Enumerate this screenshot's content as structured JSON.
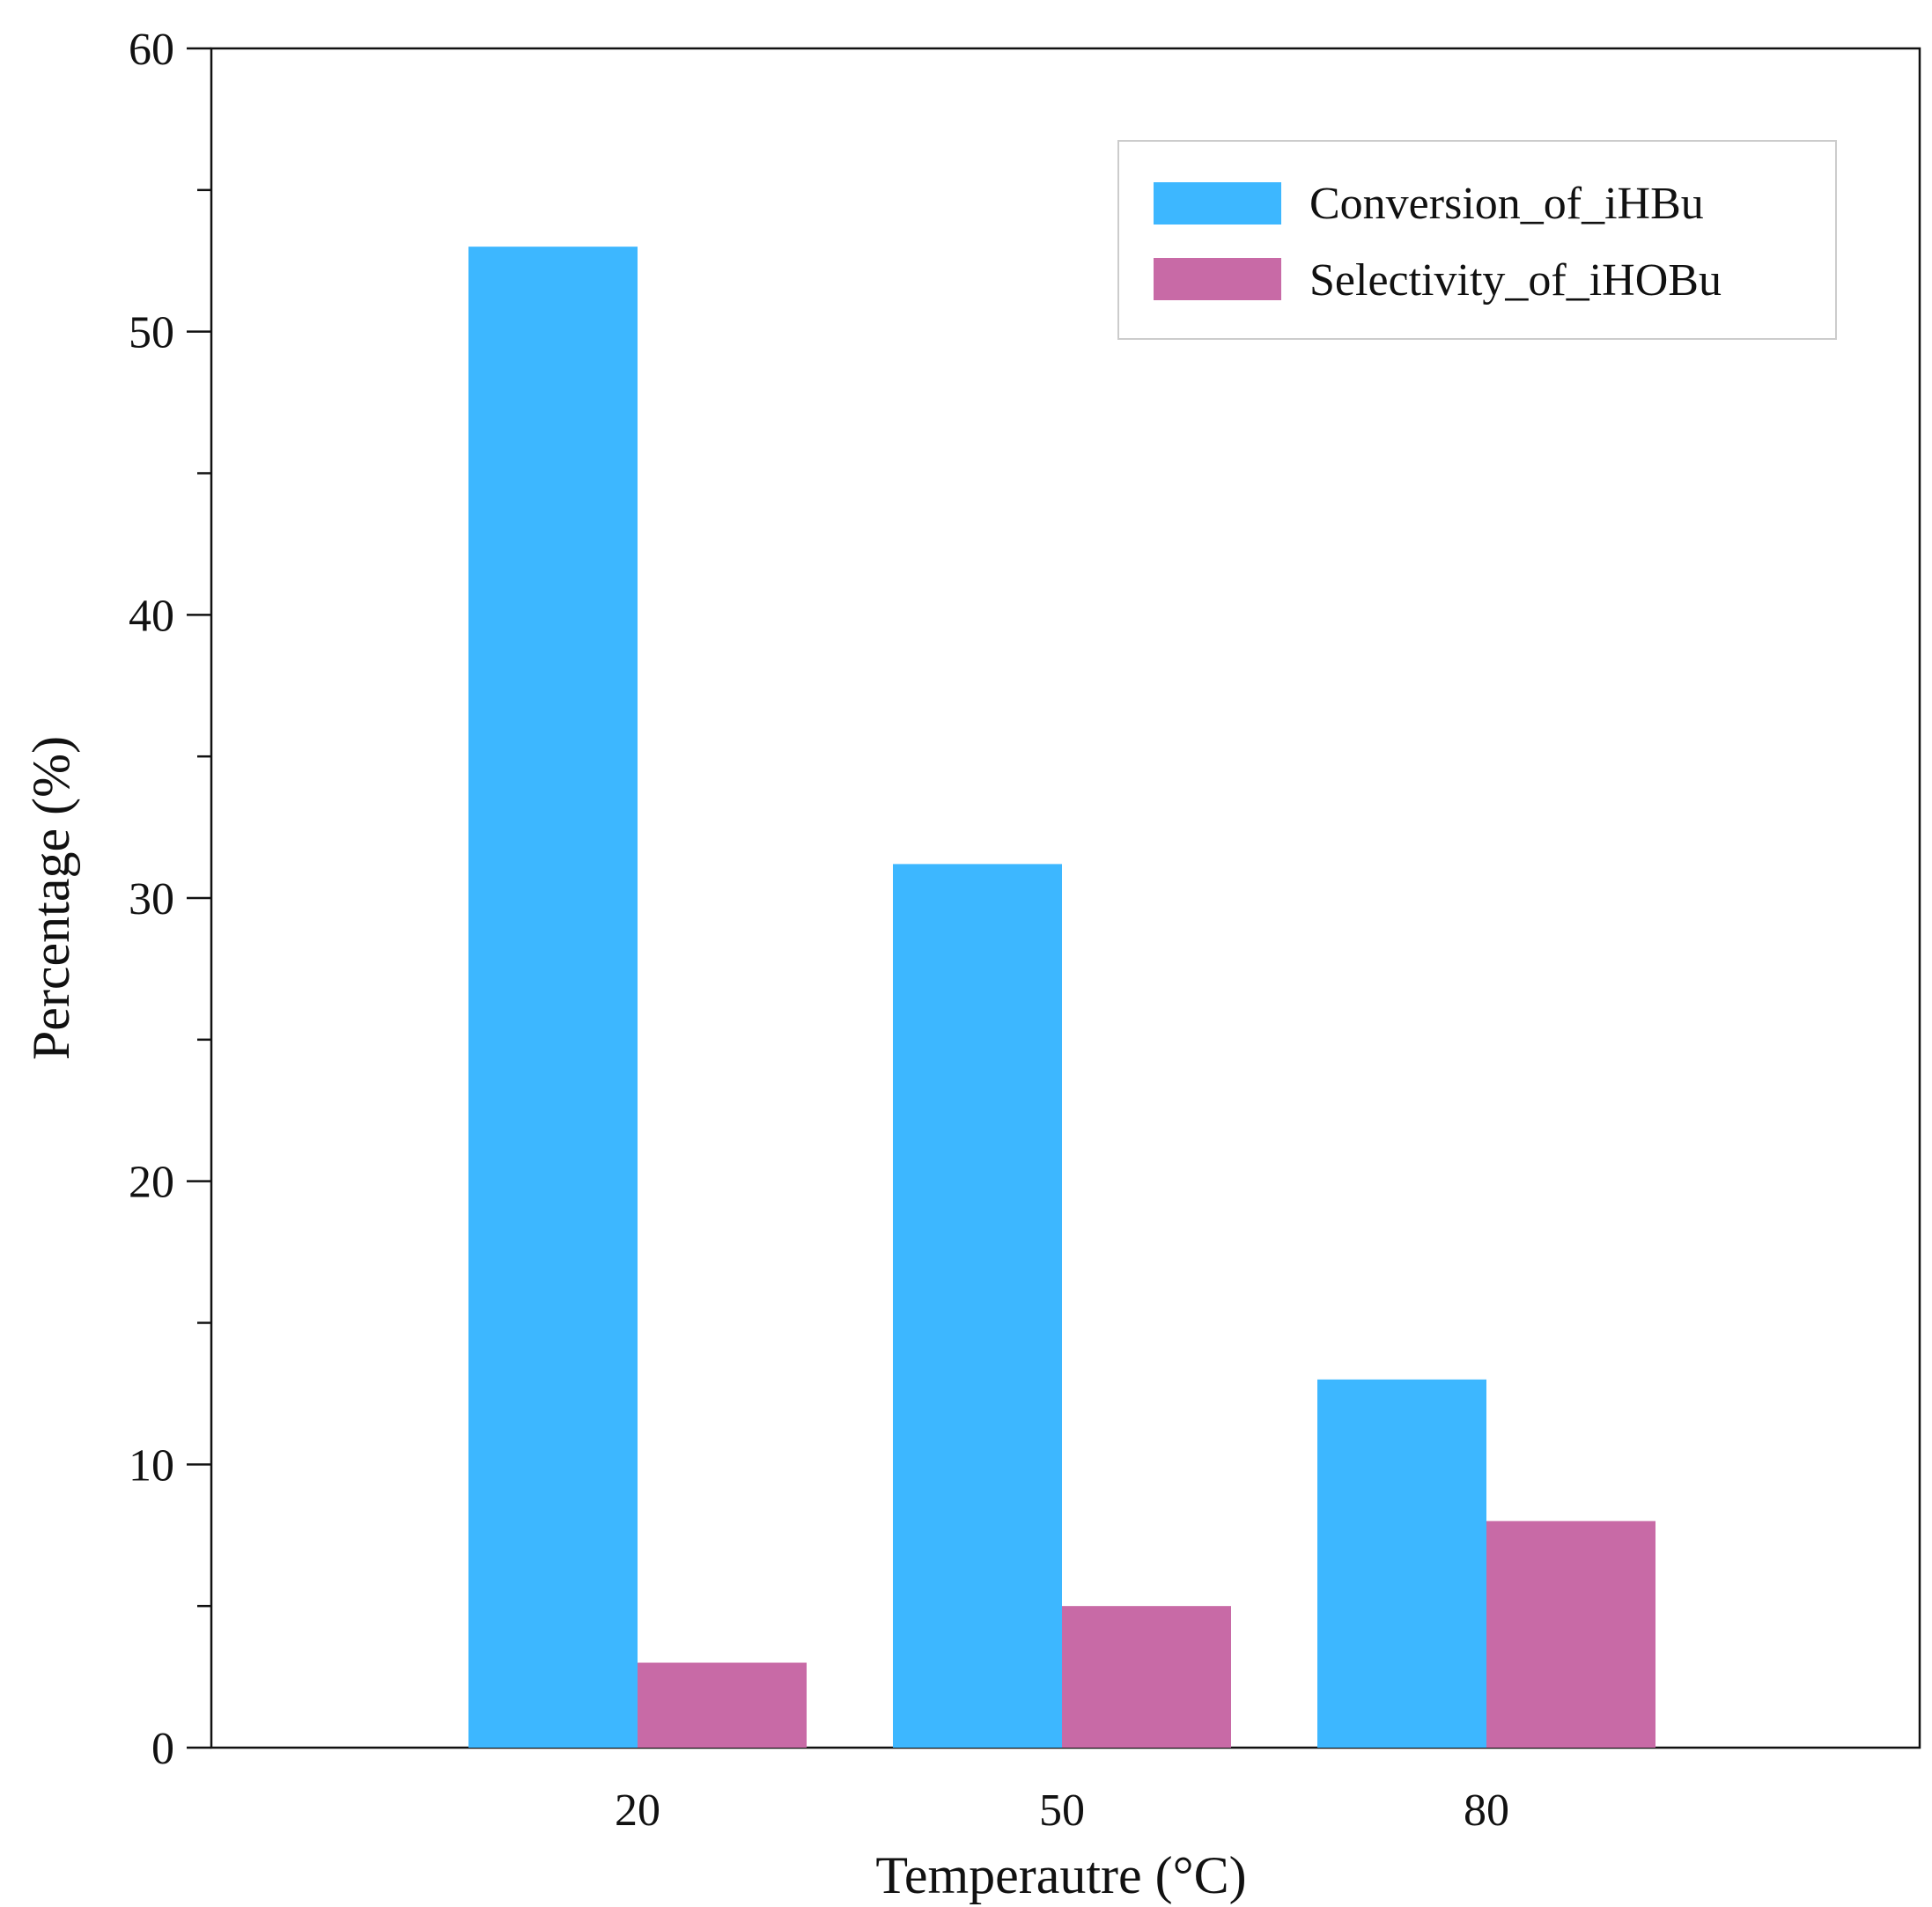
{
  "chart_data": {
    "type": "bar",
    "title": "",
    "xlabel": "Temperautre (°C)",
    "ylabel": "Percentage (%)",
    "categories": [
      "20",
      "50",
      "80"
    ],
    "series": [
      {
        "name": "Conversion_of_iHBu",
        "color": "#3db7ff",
        "values": [
          53,
          31.2,
          13
        ]
      },
      {
        "name": "Selectivity_of_iHOBu",
        "color": "#c86aa6",
        "values": [
          3,
          5,
          8
        ]
      }
    ],
    "ylim": [
      0,
      60
    ],
    "yticks": [
      "0",
      "10",
      "20",
      "30",
      "40",
      "50",
      "60"
    ],
    "grid": false,
    "legend_position": "top-right"
  }
}
